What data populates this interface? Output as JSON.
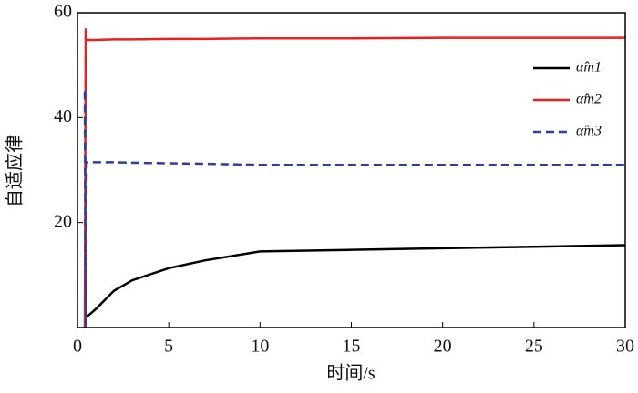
{
  "chart_data": {
    "type": "line",
    "xlabel": "时间/s",
    "ylabel": "自适应律",
    "x": [
      0.4,
      0.45,
      0.5,
      1,
      2,
      3,
      5,
      7,
      10,
      15,
      20,
      25,
      30
    ],
    "series": [
      {
        "name": "α̂m1",
        "color": "#000000",
        "dash": false,
        "values": [
          0,
          1,
          2,
          3.5,
          7,
          9,
          11.3,
          12.8,
          14.5,
          14.8,
          15.1,
          15.4,
          15.7
        ]
      },
      {
        "name": "α̂m2",
        "color": "#e8201f",
        "dash": false,
        "values": [
          0,
          57,
          54.8,
          54.8,
          54.9,
          54.9,
          55,
          55,
          55.1,
          55.1,
          55.2,
          55.2,
          55.2
        ]
      },
      {
        "name": "α̂m3",
        "color": "#2e3f94",
        "dash": true,
        "values": [
          45,
          0,
          31.5,
          31.5,
          31.5,
          31.4,
          31.3,
          31.2,
          31,
          31,
          31,
          31,
          31
        ]
      }
    ],
    "xlim": [
      0,
      30
    ],
    "ylim": [
      0,
      60
    ],
    "xticks": [
      0,
      5,
      10,
      15,
      20,
      25,
      30
    ],
    "yticks": [
      20,
      40,
      60
    ],
    "legend": "upper right",
    "grid": false
  }
}
